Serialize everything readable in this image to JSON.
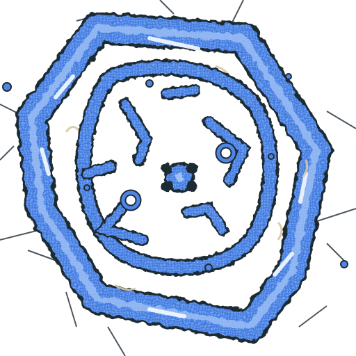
{
  "image": {
    "subject": "",
    "colors": {
      "background": "#ffffff",
      "primary_fill": "#4f86e6",
      "light_fill": "#9fc0f5",
      "highlight": "#eef5ff",
      "outline": "#1e2a33",
      "line": "#2f3a42",
      "accent_tan": "#d8c9a3"
    }
  }
}
